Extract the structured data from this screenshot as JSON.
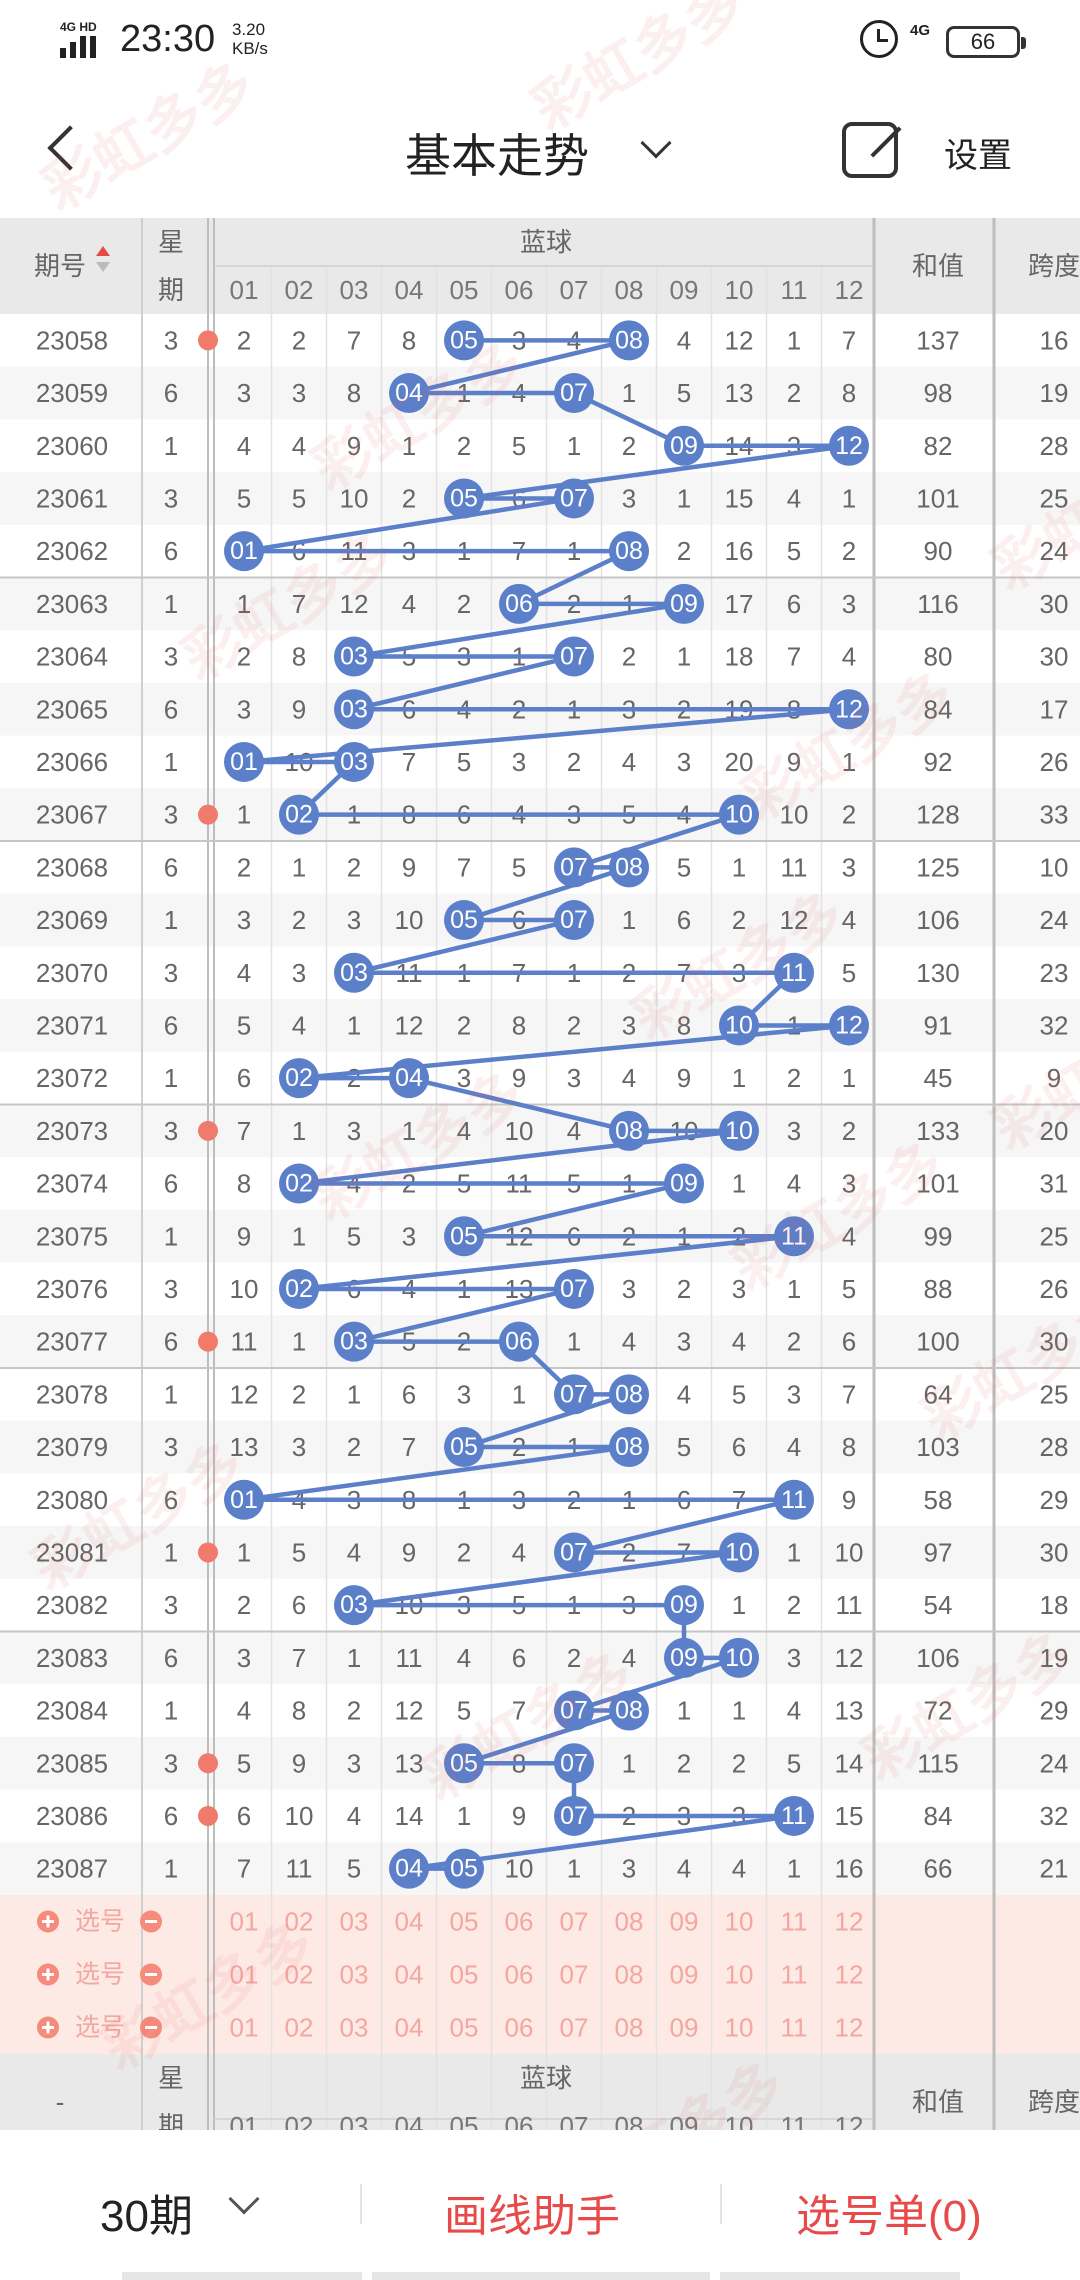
{
  "status": {
    "network": "4G HD",
    "time": "23:30",
    "speed_value": "3.20",
    "speed_unit": "KB/s",
    "net_right": "4G",
    "battery": "66"
  },
  "header": {
    "title": "基本走势",
    "settings": "设置"
  },
  "table": {
    "head": {
      "period": "期号",
      "weekday_top": "星",
      "weekday_bottom": "期",
      "blue": "蓝球",
      "sum": "和值",
      "span": "跨度"
    },
    "ball_numbers": [
      "01",
      "02",
      "03",
      "04",
      "05",
      "06",
      "07",
      "08",
      "09",
      "10",
      "11",
      "12"
    ],
    "rows": [
      {
        "period": "23058",
        "wd": "3",
        "cells": [
          "2",
          "2",
          "7",
          "8",
          "05",
          "3",
          "4",
          "08",
          "4",
          "12",
          "1",
          "7"
        ],
        "sum": "137",
        "span": "16"
      },
      {
        "period": "23059",
        "wd": "6",
        "cells": [
          "3",
          "3",
          "8",
          "04",
          "1",
          "4",
          "07",
          "1",
          "5",
          "13",
          "2",
          "8"
        ],
        "sum": "98",
        "span": "19"
      },
      {
        "period": "23060",
        "wd": "1",
        "cells": [
          "4",
          "4",
          "9",
          "1",
          "2",
          "5",
          "1",
          "2",
          "09",
          "14",
          "3",
          "12"
        ],
        "sum": "82",
        "span": "28"
      },
      {
        "period": "23061",
        "wd": "3",
        "cells": [
          "5",
          "5",
          "10",
          "2",
          "05",
          "6",
          "07",
          "3",
          "1",
          "15",
          "4",
          "1"
        ],
        "sum": "101",
        "span": "25"
      },
      {
        "period": "23062",
        "wd": "6",
        "cells": [
          "01",
          "6",
          "11",
          "3",
          "1",
          "7",
          "1",
          "08",
          "2",
          "16",
          "5",
          "2"
        ],
        "sum": "90",
        "span": "24"
      },
      {
        "period": "23063",
        "wd": "1",
        "cells": [
          "1",
          "7",
          "12",
          "4",
          "2",
          "06",
          "2",
          "1",
          "09",
          "17",
          "6",
          "3"
        ],
        "sum": "116",
        "span": "30"
      },
      {
        "period": "23064",
        "wd": "3",
        "cells": [
          "2",
          "8",
          "03",
          "5",
          "3",
          "1",
          "07",
          "2",
          "1",
          "18",
          "7",
          "4"
        ],
        "sum": "80",
        "span": "30"
      },
      {
        "period": "23065",
        "wd": "6",
        "cells": [
          "3",
          "9",
          "03",
          "6",
          "4",
          "2",
          "1",
          "3",
          "2",
          "19",
          "8",
          "12"
        ],
        "sum": "84",
        "span": "17"
      },
      {
        "period": "23066",
        "wd": "1",
        "cells": [
          "01",
          "10",
          "03",
          "7",
          "5",
          "3",
          "2",
          "4",
          "3",
          "20",
          "9",
          "1"
        ],
        "sum": "92",
        "span": "26"
      },
      {
        "period": "23067",
        "wd": "3",
        "cells": [
          "1",
          "02",
          "1",
          "8",
          "6",
          "4",
          "3",
          "5",
          "4",
          "10",
          "10",
          "2"
        ],
        "sum": "128",
        "span": "33"
      },
      {
        "period": "23068",
        "wd": "6",
        "cells": [
          "2",
          "1",
          "2",
          "9",
          "7",
          "5",
          "07",
          "08",
          "5",
          "1",
          "11",
          "3"
        ],
        "sum": "125",
        "span": "10"
      },
      {
        "period": "23069",
        "wd": "1",
        "cells": [
          "3",
          "2",
          "3",
          "10",
          "05",
          "6",
          "07",
          "1",
          "6",
          "2",
          "12",
          "4"
        ],
        "sum": "106",
        "span": "24"
      },
      {
        "period": "23070",
        "wd": "3",
        "cells": [
          "4",
          "3",
          "03",
          "11",
          "1",
          "7",
          "1",
          "2",
          "7",
          "3",
          "11",
          "5"
        ],
        "sum": "130",
        "span": "23"
      },
      {
        "period": "23071",
        "wd": "6",
        "cells": [
          "5",
          "4",
          "1",
          "12",
          "2",
          "8",
          "2",
          "3",
          "8",
          "10",
          "1",
          "12"
        ],
        "sum": "91",
        "span": "32"
      },
      {
        "period": "23072",
        "wd": "1",
        "cells": [
          "6",
          "02",
          "2",
          "04",
          "3",
          "9",
          "3",
          "4",
          "9",
          "1",
          "2",
          "1"
        ],
        "sum": "45",
        "span": "9"
      },
      {
        "period": "23073",
        "wd": "3",
        "cells": [
          "7",
          "1",
          "3",
          "1",
          "4",
          "10",
          "4",
          "08",
          "10",
          "10",
          "3",
          "2"
        ],
        "sum": "133",
        "span": "20"
      },
      {
        "period": "23074",
        "wd": "6",
        "cells": [
          "8",
          "02",
          "4",
          "2",
          "5",
          "11",
          "5",
          "1",
          "09",
          "1",
          "4",
          "3"
        ],
        "sum": "101",
        "span": "31"
      },
      {
        "period": "23075",
        "wd": "1",
        "cells": [
          "9",
          "1",
          "5",
          "3",
          "05",
          "12",
          "6",
          "2",
          "1",
          "2",
          "11",
          "4"
        ],
        "sum": "99",
        "span": "25"
      },
      {
        "period": "23076",
        "wd": "3",
        "cells": [
          "10",
          "02",
          "6",
          "4",
          "1",
          "13",
          "07",
          "3",
          "2",
          "3",
          "1",
          "5"
        ],
        "sum": "88",
        "span": "26"
      },
      {
        "period": "23077",
        "wd": "6",
        "cells": [
          "11",
          "1",
          "03",
          "5",
          "2",
          "06",
          "1",
          "4",
          "3",
          "4",
          "2",
          "6"
        ],
        "sum": "100",
        "span": "30"
      },
      {
        "period": "23078",
        "wd": "1",
        "cells": [
          "12",
          "2",
          "1",
          "6",
          "3",
          "1",
          "07",
          "08",
          "4",
          "5",
          "3",
          "7"
        ],
        "sum": "64",
        "span": "25"
      },
      {
        "period": "23079",
        "wd": "3",
        "cells": [
          "13",
          "3",
          "2",
          "7",
          "05",
          "2",
          "1",
          "08",
          "5",
          "6",
          "4",
          "8"
        ],
        "sum": "103",
        "span": "28"
      },
      {
        "period": "23080",
        "wd": "6",
        "cells": [
          "01",
          "4",
          "3",
          "8",
          "1",
          "3",
          "2",
          "1",
          "6",
          "7",
          "11",
          "9"
        ],
        "sum": "58",
        "span": "29"
      },
      {
        "period": "23081",
        "wd": "1",
        "cells": [
          "1",
          "5",
          "4",
          "9",
          "2",
          "4",
          "07",
          "2",
          "7",
          "10",
          "1",
          "10"
        ],
        "sum": "97",
        "span": "30"
      },
      {
        "period": "23082",
        "wd": "3",
        "cells": [
          "2",
          "6",
          "03",
          "10",
          "3",
          "5",
          "1",
          "3",
          "09",
          "1",
          "2",
          "11"
        ],
        "sum": "54",
        "span": "18"
      },
      {
        "period": "23083",
        "wd": "6",
        "cells": [
          "3",
          "7",
          "1",
          "11",
          "4",
          "6",
          "2",
          "4",
          "09",
          "10",
          "3",
          "12"
        ],
        "sum": "106",
        "span": "19"
      },
      {
        "period": "23084",
        "wd": "1",
        "cells": [
          "4",
          "8",
          "2",
          "12",
          "5",
          "7",
          "07",
          "08",
          "1",
          "1",
          "4",
          "13"
        ],
        "sum": "72",
        "span": "29"
      },
      {
        "period": "23085",
        "wd": "3",
        "cells": [
          "5",
          "9",
          "3",
          "13",
          "05",
          "8",
          "07",
          "1",
          "2",
          "2",
          "5",
          "14"
        ],
        "sum": "115",
        "span": "24"
      },
      {
        "period": "23086",
        "wd": "6",
        "cells": [
          "6",
          "10",
          "4",
          "14",
          "1",
          "9",
          "07",
          "2",
          "3",
          "3",
          "11",
          "15"
        ],
        "sum": "84",
        "span": "32"
      },
      {
        "period": "23087",
        "wd": "1",
        "cells": [
          "7",
          "11",
          "5",
          "04",
          "05",
          "10",
          "1",
          "3",
          "4",
          "4",
          "1",
          "16"
        ],
        "sum": "66",
        "span": "21"
      }
    ],
    "pick_label": "选号",
    "foot": {
      "period": "-"
    }
  },
  "bottom": {
    "period_select": "30期",
    "draw_helper": "画线助手",
    "pick_list": "选号单(0)"
  },
  "watermark": "彩虹多多",
  "colors": {
    "ball": "#5b7fc9",
    "line": "#5b7fc9",
    "pick_bg": "#fdeae5",
    "pick_text": "#f4a6a0",
    "red_accent": "#e84a4a",
    "header_bg": "#e9e9e9"
  }
}
